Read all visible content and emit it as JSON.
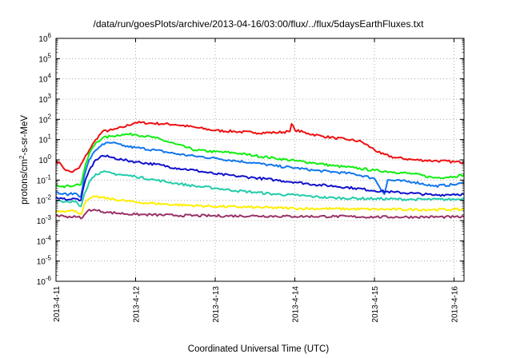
{
  "chart_data": {
    "type": "line",
    "title": "/data/run/goesPlots/archive/2013-04-16/03:00/flux/../flux/5daysEarthFluxes.txt",
    "xlabel": "Coordinated Universal Time (UTC)",
    "ylabel": "protons/cm2-s-sr-MeV",
    "ylabel_parts": {
      "before": "protons/cm",
      "sup": "2",
      "after": "-s-sr-MeV"
    },
    "xscale": "time",
    "yscale": "log",
    "xlim": [
      "2013-04-11T00:00",
      "2013-04-16T03:00"
    ],
    "ylim": [
      1e-06,
      1000000.0
    ],
    "x_ticks": [
      "2013-4-11",
      "2013-4-12",
      "2013-4-13",
      "2013-4-14",
      "2013-4-15",
      "2013-4-16"
    ],
    "y_ticks": [
      {
        "value": 1e-06,
        "base": "10",
        "exp": "-6"
      },
      {
        "value": 1e-05,
        "base": "10",
        "exp": "-5"
      },
      {
        "value": 0.0001,
        "base": "10",
        "exp": "-4"
      },
      {
        "value": 0.001,
        "base": "10",
        "exp": "-3"
      },
      {
        "value": 0.01,
        "base": "10",
        "exp": "-2"
      },
      {
        "value": 0.1,
        "base": "10",
        "exp": "-1"
      },
      {
        "value": 1.0,
        "base": "10",
        "exp": "0"
      },
      {
        "value": 10.0,
        "base": "10",
        "exp": "1"
      },
      {
        "value": 100.0,
        "base": "10",
        "exp": "2"
      },
      {
        "value": 1000.0,
        "base": "10",
        "exp": "3"
      },
      {
        "value": 10000.0,
        "base": "10",
        "exp": "4"
      },
      {
        "value": 100000.0,
        "base": "10",
        "exp": "5"
      },
      {
        "value": 1000000.0,
        "base": "10",
        "exp": "6"
      }
    ],
    "grid": true,
    "legend": "none",
    "series": [
      {
        "color": "#ee1111",
        "points": [
          [
            "2013-04-11T00:00",
            0.9
          ],
          [
            "2013-04-11T01:30",
            0.6
          ],
          [
            "2013-04-11T03:00",
            0.3
          ],
          [
            "2013-04-11T05:00",
            0.25
          ],
          [
            "2013-04-11T07:00",
            0.4
          ],
          [
            "2013-04-11T08:00",
            0.8
          ],
          [
            "2013-04-11T10:00",
            3
          ],
          [
            "2013-04-11T12:00",
            10
          ],
          [
            "2013-04-11T14:00",
            25
          ],
          [
            "2013-04-11T17:00",
            30
          ],
          [
            "2013-04-11T20:00",
            40
          ],
          [
            "2013-04-12T00:00",
            70
          ],
          [
            "2013-04-12T04:00",
            65
          ],
          [
            "2013-04-12T08:00",
            60
          ],
          [
            "2013-04-12T12:00",
            55
          ],
          [
            "2013-04-12T18:00",
            40
          ],
          [
            "2013-04-13T00:00",
            28
          ],
          [
            "2013-04-13T06:00",
            25
          ],
          [
            "2013-04-13T12:00",
            22
          ],
          [
            "2013-04-13T18:00",
            22
          ],
          [
            "2013-04-13T22:30",
            25
          ],
          [
            "2013-04-13T23:00",
            60
          ],
          [
            "2013-04-14T00:00",
            30
          ],
          [
            "2013-04-14T04:00",
            20
          ],
          [
            "2013-04-14T08:00",
            15
          ],
          [
            "2013-04-14T12:00",
            12
          ],
          [
            "2013-04-14T16:00",
            10
          ],
          [
            "2013-04-14T20:00",
            8
          ],
          [
            "2013-04-14T23:00",
            4
          ],
          [
            "2013-04-15T02:00",
            2
          ],
          [
            "2013-04-15T06:00",
            1.3
          ],
          [
            "2013-04-15T12:00",
            1.0
          ],
          [
            "2013-04-15T18:00",
            0.9
          ],
          [
            "2013-04-16T00:00",
            0.8
          ],
          [
            "2013-04-16T03:00",
            0.75
          ]
        ]
      },
      {
        "color": "#11ee11",
        "points": [
          [
            "2013-04-11T00:00",
            0.06
          ],
          [
            "2013-04-11T02:00",
            0.05
          ],
          [
            "2013-04-11T04:00",
            0.05
          ],
          [
            "2013-04-11T06:00",
            0.06
          ],
          [
            "2013-04-11T07:30",
            0.06
          ],
          [
            "2013-04-11T08:30",
            0.3
          ],
          [
            "2013-04-11T10:00",
            2
          ],
          [
            "2013-04-11T12:00",
            7
          ],
          [
            "2013-04-11T14:00",
            12
          ],
          [
            "2013-04-11T17:00",
            15
          ],
          [
            "2013-04-11T20:00",
            18
          ],
          [
            "2013-04-12T00:00",
            18
          ],
          [
            "2013-04-12T06:00",
            12
          ],
          [
            "2013-04-12T12:00",
            6
          ],
          [
            "2013-04-12T18:00",
            3
          ],
          [
            "2013-04-13T00:00",
            2.5
          ],
          [
            "2013-04-13T06:00",
            2.2
          ],
          [
            "2013-04-13T12:00",
            1.6
          ],
          [
            "2013-04-13T18:00",
            1.2
          ],
          [
            "2013-04-14T00:00",
            0.9
          ],
          [
            "2013-04-14T06:00",
            0.7
          ],
          [
            "2013-04-14T12:00",
            0.5
          ],
          [
            "2013-04-14T18:00",
            0.4
          ],
          [
            "2013-04-15T00:00",
            0.3
          ],
          [
            "2013-04-15T06:00",
            0.25
          ],
          [
            "2013-04-15T12:00",
            0.2
          ],
          [
            "2013-04-15T18:00",
            0.13
          ],
          [
            "2013-04-16T00:00",
            0.15
          ],
          [
            "2013-04-16T03:00",
            0.18
          ]
        ]
      },
      {
        "color": "#1177ee",
        "points": [
          [
            "2013-04-11T00:00",
            0.025
          ],
          [
            "2013-04-11T02:00",
            0.02
          ],
          [
            "2013-04-11T04:00",
            0.02
          ],
          [
            "2013-04-11T06:00",
            0.022
          ],
          [
            "2013-04-11T07:30",
            0.015
          ],
          [
            "2013-04-11T08:30",
            0.15
          ],
          [
            "2013-04-11T10:00",
            1
          ],
          [
            "2013-04-11T12:00",
            3
          ],
          [
            "2013-04-11T14:00",
            6
          ],
          [
            "2013-04-11T17:00",
            7
          ],
          [
            "2013-04-11T20:00",
            5
          ],
          [
            "2013-04-12T00:00",
            4
          ],
          [
            "2013-04-12T06:00",
            3
          ],
          [
            "2013-04-12T12:00",
            2
          ],
          [
            "2013-04-12T18:00",
            1.5
          ],
          [
            "2013-04-13T00:00",
            1.2
          ],
          [
            "2013-04-13T06:00",
            0.9
          ],
          [
            "2013-04-13T12:00",
            0.7
          ],
          [
            "2013-04-13T18:00",
            0.5
          ],
          [
            "2013-04-14T00:00",
            0.4
          ],
          [
            "2013-04-14T06:00",
            0.3
          ],
          [
            "2013-04-14T12:00",
            0.25
          ],
          [
            "2013-04-14T18:00",
            0.2
          ],
          [
            "2013-04-15T00:00",
            0.12
          ],
          [
            "2013-04-15T03:00",
            0.02
          ],
          [
            "2013-04-15T04:00",
            0.1
          ],
          [
            "2013-04-15T12:00",
            0.08
          ],
          [
            "2013-04-15T18:00",
            0.05
          ],
          [
            "2013-04-16T00:00",
            0.06
          ],
          [
            "2013-04-16T03:00",
            0.07
          ]
        ]
      },
      {
        "color": "#1111cc",
        "points": [
          [
            "2013-04-11T00:00",
            0.015
          ],
          [
            "2013-04-11T02:00",
            0.012
          ],
          [
            "2013-04-11T04:00",
            0.011
          ],
          [
            "2013-04-11T06:00",
            0.012
          ],
          [
            "2013-04-11T07:30",
            0.01
          ],
          [
            "2013-04-11T08:30",
            0.06
          ],
          [
            "2013-04-11T10:00",
            0.3
          ],
          [
            "2013-04-11T12:00",
            1
          ],
          [
            "2013-04-11T14:00",
            1.6
          ],
          [
            "2013-04-11T17:00",
            1.3
          ],
          [
            "2013-04-11T20:00",
            1.0
          ],
          [
            "2013-04-12T00:00",
            0.8
          ],
          [
            "2013-04-12T06:00",
            0.6
          ],
          [
            "2013-04-12T12:00",
            0.4
          ],
          [
            "2013-04-12T18:00",
            0.3
          ],
          [
            "2013-04-13T00:00",
            0.2
          ],
          [
            "2013-04-13T06:00",
            0.16
          ],
          [
            "2013-04-13T12:00",
            0.13
          ],
          [
            "2013-04-13T18:00",
            0.1
          ],
          [
            "2013-04-14T00:00",
            0.08
          ],
          [
            "2013-04-14T06:00",
            0.06
          ],
          [
            "2013-04-14T12:00",
            0.05
          ],
          [
            "2013-04-14T18:00",
            0.04
          ],
          [
            "2013-04-15T00:00",
            0.03
          ],
          [
            "2013-04-15T06:00",
            0.025
          ],
          [
            "2013-04-15T12:00",
            0.022
          ],
          [
            "2013-04-15T18:00",
            0.018
          ],
          [
            "2013-04-16T00:00",
            0.02
          ],
          [
            "2013-04-16T03:00",
            0.02
          ]
        ]
      },
      {
        "color": "#22ccaa",
        "points": [
          [
            "2013-04-11T00:00",
            0.01
          ],
          [
            "2013-04-11T02:00",
            0.008
          ],
          [
            "2013-04-11T04:00",
            0.008
          ],
          [
            "2013-04-11T06:00",
            0.009
          ],
          [
            "2013-04-11T07:30",
            0.005
          ],
          [
            "2013-04-11T08:30",
            0.02
          ],
          [
            "2013-04-11T10:00",
            0.08
          ],
          [
            "2013-04-11T12:00",
            0.2
          ],
          [
            "2013-04-11T14:00",
            0.25
          ],
          [
            "2013-04-11T20:00",
            0.18
          ],
          [
            "2013-04-12T00:00",
            0.15
          ],
          [
            "2013-04-12T06:00",
            0.1
          ],
          [
            "2013-04-12T12:00",
            0.07
          ],
          [
            "2013-04-12T18:00",
            0.05
          ],
          [
            "2013-04-13T00:00",
            0.04
          ],
          [
            "2013-04-13T06:00",
            0.03
          ],
          [
            "2013-04-13T12:00",
            0.025
          ],
          [
            "2013-04-13T18:00",
            0.02
          ],
          [
            "2013-04-14T00:00",
            0.018
          ],
          [
            "2013-04-14T06:00",
            0.015
          ],
          [
            "2013-04-14T12:00",
            0.013
          ],
          [
            "2013-04-15T00:00",
            0.012
          ],
          [
            "2013-04-15T12:00",
            0.011
          ],
          [
            "2013-04-16T00:00",
            0.011
          ],
          [
            "2013-04-16T03:00",
            0.012
          ]
        ]
      },
      {
        "color": "#ffee00",
        "points": [
          [
            "2013-04-11T00:00",
            0.003
          ],
          [
            "2013-04-11T02:00",
            0.003
          ],
          [
            "2013-04-11T04:00",
            0.003
          ],
          [
            "2013-04-11T06:00",
            0.003
          ],
          [
            "2013-04-11T07:30",
            0.002
          ],
          [
            "2013-04-11T08:30",
            0.006
          ],
          [
            "2013-04-11T10:00",
            0.012
          ],
          [
            "2013-04-11T12:00",
            0.015
          ],
          [
            "2013-04-11T16:00",
            0.012
          ],
          [
            "2013-04-12T00:00",
            0.008
          ],
          [
            "2013-04-12T12:00",
            0.006
          ],
          [
            "2013-04-13T00:00",
            0.005
          ],
          [
            "2013-04-13T12:00",
            0.0045
          ],
          [
            "2013-04-14T00:00",
            0.004
          ],
          [
            "2013-04-14T12:00",
            0.0038
          ],
          [
            "2013-04-15T00:00",
            0.0036
          ],
          [
            "2013-04-15T12:00",
            0.0035
          ],
          [
            "2013-04-16T00:00",
            0.0035
          ],
          [
            "2013-04-16T03:00",
            0.0035
          ]
        ]
      },
      {
        "color": "#993366",
        "points": [
          [
            "2013-04-11T00:00",
            0.0018
          ],
          [
            "2013-04-11T03:00",
            0.0016
          ],
          [
            "2013-04-11T06:00",
            0.0015
          ],
          [
            "2013-04-11T08:00",
            0.0014
          ],
          [
            "2013-04-11T10:00",
            0.0035
          ],
          [
            "2013-04-11T12:00",
            0.0032
          ],
          [
            "2013-04-11T16:00",
            0.0025
          ],
          [
            "2013-04-12T00:00",
            0.002
          ],
          [
            "2013-04-12T12:00",
            0.0018
          ],
          [
            "2013-04-13T00:00",
            0.0017
          ],
          [
            "2013-04-13T12:00",
            0.0017
          ],
          [
            "2013-04-14T00:00",
            0.0016
          ],
          [
            "2013-04-14T12:00",
            0.0016
          ],
          [
            "2013-04-15T00:00",
            0.0015
          ],
          [
            "2013-04-15T12:00",
            0.0015
          ],
          [
            "2013-04-16T00:00",
            0.0015
          ],
          [
            "2013-04-16T03:00",
            0.0015
          ]
        ]
      }
    ]
  }
}
